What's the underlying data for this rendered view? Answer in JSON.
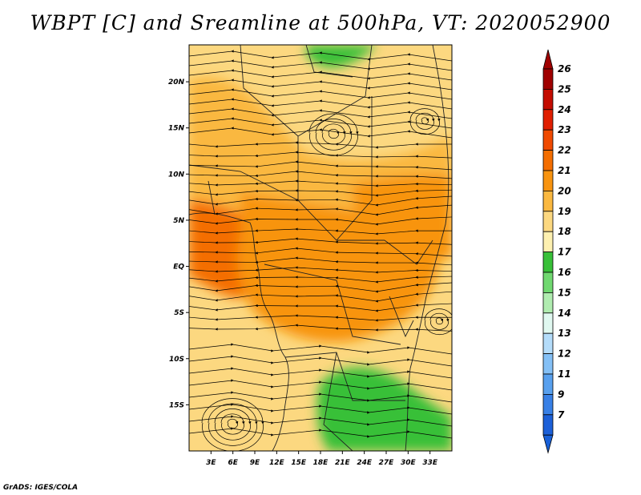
{
  "chart_data": {
    "type": "heatmap",
    "title": "WBPT [C] and Sreamline at 500hPa, VT: 2020052900",
    "variable": "WBPT [C]",
    "level": "500hPa",
    "overlay": "streamline",
    "xlim": [
      0,
      36
    ],
    "ylim": [
      -20,
      24
    ],
    "x_ticks": [
      3,
      6,
      9,
      12,
      15,
      18,
      21,
      24,
      27,
      30,
      33
    ],
    "x_tick_labels": [
      "3E",
      "6E",
      "9E",
      "12E",
      "15E",
      "18E",
      "21E",
      "24E",
      "27E",
      "30E",
      "33E"
    ],
    "y_ticks": [
      20,
      15,
      10,
      5,
      0,
      -5,
      -10,
      -15
    ],
    "y_tick_labels": [
      "20N",
      "15N",
      "10N",
      "5N",
      "EQ",
      "5S",
      "10S",
      "15S"
    ],
    "colorbar": {
      "levels": [
        "26",
        "25",
        "24",
        "23",
        "22",
        "21",
        "20",
        "19",
        "18",
        "17",
        "16",
        "15",
        "14",
        "13",
        "12",
        "11",
        "9",
        "7"
      ],
      "colors": [
        "#a00000",
        "#c40c00",
        "#e01e00",
        "#f04a00",
        "#f46e00",
        "#f89410",
        "#fab840",
        "#fcd880",
        "#fdf0b0",
        "#38c038",
        "#70d870",
        "#b0ecb0",
        "#e0f8f0",
        "#b4dcfa",
        "#84c0f6",
        "#58a0ee",
        "#3880e6",
        "#1c60d8"
      ],
      "top_color": "#a00000",
      "bottom_color": "#1860d8"
    },
    "fields": [
      {
        "region": "background",
        "value": 19.5
      },
      {
        "region": "northwest-band",
        "value": 20.5
      },
      {
        "region": "west-equatorial",
        "value": 22.5
      },
      {
        "region": "central-equatorial",
        "value": 21.5
      },
      {
        "region": "east-equatorial",
        "value": 21
      },
      {
        "region": "north-green",
        "value": 17.5
      },
      {
        "region": "southeast-green",
        "value": 17.5
      }
    ]
  },
  "credit": "GrADS: IGES/COLA"
}
